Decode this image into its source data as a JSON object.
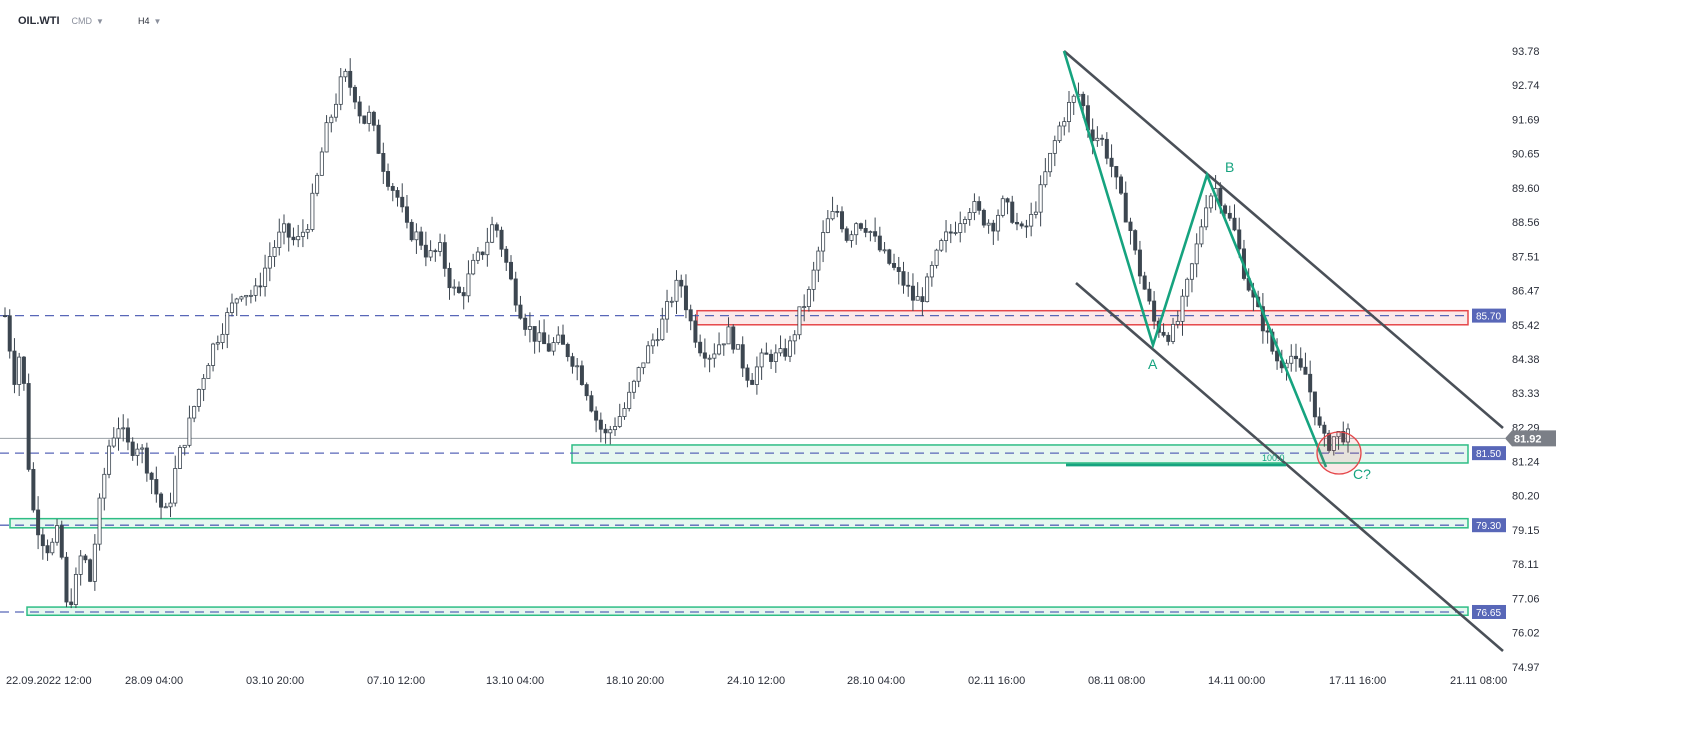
{
  "header": {
    "symbol": "OIL.WTI",
    "market": "CMD",
    "timeframe": "H4"
  },
  "chart_data": {
    "type": "candlestick",
    "ylim": [
      74.97,
      94.7
    ],
    "y_ticks": [
      "93.78",
      "92.74",
      "91.69",
      "90.65",
      "89.60",
      "88.56",
      "87.51",
      "86.47",
      "85.42",
      "84.38",
      "83.33",
      "82.29",
      "81.24",
      "80.20",
      "79.15",
      "78.11",
      "77.06",
      "76.02",
      "74.97"
    ],
    "x_ticks": [
      "22.09.2022  12:00",
      "28.09  04:00",
      "03.10  20:00",
      "07.10  12:00",
      "13.10  04:00",
      "18.10  20:00",
      "24.10  12:00",
      "28.10  04:00",
      "02.11  16:00",
      "08.11  08:00",
      "14.11  00:00",
      "17.11  16:00",
      "21.11  08:00"
    ],
    "current_price": "81.92",
    "levels": [
      {
        "label": "85.70",
        "price": 85.7
      },
      {
        "label": "81.50",
        "price": 81.5
      },
      {
        "label": "79.30",
        "price": 79.3
      },
      {
        "label": "76.65",
        "price": 76.65
      }
    ],
    "zones": [
      {
        "name": "resistance-zone",
        "low": 85.42,
        "high": 85.85,
        "color": "#e5474a"
      },
      {
        "name": "support-zone-81",
        "low": 81.2,
        "high": 81.75,
        "color": "#2ebd85"
      },
      {
        "name": "support-zone-79",
        "low": 79.22,
        "high": 79.5,
        "color": "#2ebd85"
      },
      {
        "name": "support-zone-76",
        "low": 76.55,
        "high": 76.8,
        "color": "#2ebd85"
      }
    ],
    "wave_labels": [
      "A",
      "B",
      "C?"
    ],
    "fib_label": "100.0",
    "candle_path": [
      [
        0,
        85.7
      ],
      [
        8,
        83.8
      ],
      [
        14,
        84.8
      ],
      [
        22,
        80.0
      ],
      [
        30,
        79.0
      ],
      [
        38,
        78.5
      ],
      [
        46,
        79.2
      ],
      [
        52,
        76.8
      ],
      [
        58,
        77.2
      ],
      [
        66,
        78.6
      ],
      [
        72,
        77.5
      ],
      [
        80,
        79.8
      ],
      [
        88,
        81.7
      ],
      [
        96,
        82.4
      ],
      [
        106,
        81.6
      ],
      [
        114,
        81.8
      ],
      [
        124,
        80.8
      ],
      [
        132,
        79.9
      ],
      [
        138,
        79.6
      ],
      [
        146,
        81.2
      ],
      [
        156,
        82.3
      ],
      [
        166,
        83.6
      ],
      [
        176,
        84.7
      ],
      [
        188,
        85.6
      ],
      [
        200,
        86.5
      ],
      [
        212,
        86.3
      ],
      [
        226,
        87.6
      ],
      [
        236,
        88.3
      ],
      [
        248,
        87.9
      ],
      [
        258,
        88.6
      ],
      [
        266,
        90.0
      ],
      [
        272,
        91.2
      ],
      [
        280,
        92.1
      ],
      [
        288,
        93.1
      ],
      [
        298,
        92.4
      ],
      [
        304,
        91.6
      ],
      [
        310,
        91.8
      ],
      [
        316,
        91.0
      ],
      [
        324,
        90.0
      ],
      [
        334,
        89.3
      ],
      [
        342,
        88.3
      ],
      [
        352,
        88.1
      ],
      [
        360,
        87.5
      ],
      [
        370,
        87.7
      ],
      [
        380,
        86.5
      ],
      [
        388,
        86.3
      ],
      [
        398,
        87.2
      ],
      [
        408,
        87.8
      ],
      [
        416,
        88.6
      ],
      [
        424,
        87.6
      ],
      [
        432,
        86.5
      ],
      [
        442,
        85.5
      ],
      [
        452,
        85.0
      ],
      [
        462,
        84.7
      ],
      [
        470,
        84.9
      ],
      [
        478,
        84.6
      ],
      [
        486,
        84.2
      ],
      [
        494,
        83.5
      ],
      [
        502,
        82.6
      ],
      [
        510,
        82.0
      ],
      [
        518,
        82.4
      ],
      [
        526,
        82.8
      ],
      [
        534,
        83.5
      ],
      [
        542,
        84.3
      ],
      [
        550,
        84.9
      ],
      [
        558,
        85.4
      ],
      [
        566,
        86.2
      ],
      [
        574,
        86.8
      ],
      [
        582,
        85.6
      ],
      [
        590,
        84.8
      ],
      [
        600,
        84.5
      ],
      [
        608,
        84.9
      ],
      [
        616,
        85.2
      ],
      [
        624,
        84.5
      ],
      [
        634,
        83.7
      ],
      [
        642,
        84.3
      ],
      [
        650,
        84.5
      ],
      [
        658,
        84.4
      ],
      [
        668,
        84.8
      ],
      [
        676,
        85.8
      ],
      [
        684,
        86.4
      ],
      [
        692,
        87.7
      ],
      [
        700,
        88.6
      ],
      [
        708,
        88.9
      ],
      [
        716,
        88.1
      ],
      [
        724,
        88.6
      ],
      [
        734,
        88.4
      ],
      [
        742,
        87.8
      ],
      [
        750,
        87.4
      ],
      [
        758,
        87.0
      ],
      [
        766,
        86.6
      ],
      [
        774,
        86.1
      ],
      [
        782,
        86.4
      ],
      [
        790,
        87.3
      ],
      [
        798,
        88.0
      ],
      [
        806,
        88.3
      ],
      [
        814,
        88.8
      ],
      [
        822,
        89.1
      ],
      [
        830,
        88.7
      ],
      [
        840,
        88.5
      ],
      [
        848,
        89.1
      ],
      [
        856,
        88.8
      ],
      [
        864,
        88.2
      ],
      [
        872,
        88.6
      ],
      [
        880,
        89.4
      ],
      [
        890,
        90.7
      ],
      [
        898,
        91.6
      ],
      [
        906,
        92.2
      ],
      [
        914,
        92.5
      ],
      [
        922,
        91.3
      ],
      [
        932,
        91.1
      ],
      [
        940,
        90.4
      ],
      [
        948,
        89.3
      ],
      [
        956,
        88.5
      ],
      [
        962,
        87.4
      ],
      [
        970,
        86.4
      ],
      [
        978,
        85.4
      ],
      [
        986,
        85.2
      ],
      [
        992,
        85.1
      ],
      [
        998,
        85.6
      ],
      [
        1006,
        86.7
      ],
      [
        1014,
        87.9
      ],
      [
        1022,
        89.3
      ],
      [
        1030,
        89.6
      ],
      [
        1038,
        88.9
      ],
      [
        1046,
        88.2
      ],
      [
        1054,
        87.0
      ],
      [
        1062,
        86.1
      ],
      [
        1070,
        85.4
      ],
      [
        1078,
        84.6
      ],
      [
        1084,
        84.2
      ],
      [
        1092,
        84.6
      ],
      [
        1100,
        84.0
      ],
      [
        1106,
        83.9
      ],
      [
        1112,
        83.1
      ],
      [
        1118,
        82.2
      ],
      [
        1124,
        81.7
      ],
      [
        1130,
        82.0
      ],
      [
        1136,
        82.1
      ],
      [
        1142,
        82.0
      ]
    ]
  }
}
